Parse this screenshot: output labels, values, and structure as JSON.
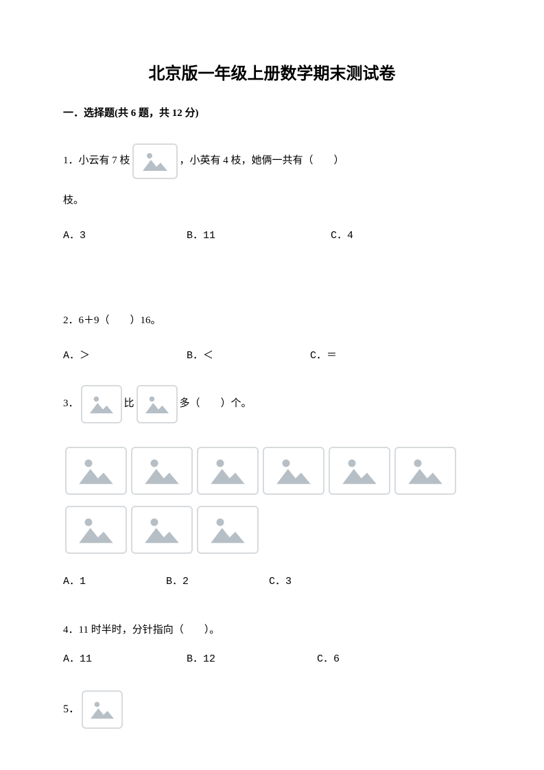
{
  "title": "北京版一年级上册数学期末测试卷",
  "section": {
    "header": "一．选择题(共 6 题，共 12 分)"
  },
  "placeholder_colors": {
    "border": "#d7dbde",
    "mountain": "#b7bfc6",
    "sun": "#b7bfc6",
    "bg": "#ffffff"
  },
  "q1": {
    "prefix": "1．小云有 7 枝",
    "mid": "，小英有 4 枝，她俩一共有（　　）",
    "line2": "枝。",
    "options": {
      "a": "A．3",
      "b": "B．11",
      "c": "C．4"
    }
  },
  "q2": {
    "line": "2．6＋9（　　）16。",
    "options": {
      "a": "A．＞",
      "b": "B．＜",
      "c": "C．＝"
    }
  },
  "q3": {
    "prefix": "3．",
    "mid": "比",
    "suffix": "多（　　）个。",
    "row1_count": 6,
    "row2_count": 3,
    "options": {
      "a": "A．1",
      "b": "B．2",
      "c": "C．3"
    }
  },
  "q4": {
    "line": "4．11 时半时，分针指向（　　）。",
    "options": {
      "a": "A．11",
      "b": "B．12",
      "c": "C．6"
    }
  },
  "q5": {
    "prefix": "5．"
  }
}
